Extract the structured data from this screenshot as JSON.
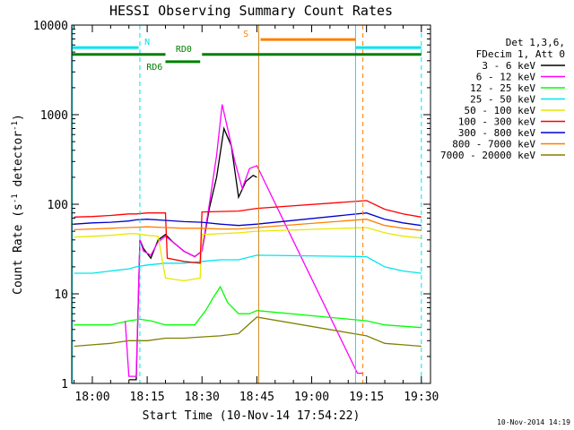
{
  "chart_data": {
    "type": "line",
    "title": "HESSI Observing Summary Count Rates",
    "xlabel": "Start Time (10-Nov-14 17:54:22)",
    "ylabel": "Count Rate (s",
    "ylabel_sup1": "-1",
    "ylabel_mid": " detector",
    "ylabel_sup2": "-1",
    "ylabel_end": ")",
    "y_scale": "log",
    "ylim": [
      1,
      10000
    ],
    "xlim": [
      "17:54:22",
      "19:32:30"
    ],
    "x_ticks": [
      "18:00",
      "18:15",
      "18:30",
      "18:45",
      "19:00",
      "19:15",
      "19:30"
    ],
    "y_ticks": [
      "1",
      "10",
      "100",
      "1000",
      "10000"
    ],
    "legend_header": [
      "Det 1,3,6,",
      "FDecim 1, Att 0"
    ],
    "legend_position": "right-top",
    "timestamp": "10-Nov-2014 14:19",
    "state_bars": [
      {
        "label": "N",
        "start": "17:54:30",
        "end": "18:12:40",
        "label_at": "18:15",
        "level": 5600,
        "color": "#00e5ee"
      },
      {
        "label": "N",
        "start": "19:12:00",
        "end": "19:30:00",
        "label_at": null,
        "level": 5600,
        "color": "#00e5ee"
      },
      {
        "label": "S",
        "start": "18:46:00",
        "end": "19:12:00",
        "label_at": "18:42",
        "level": 6900,
        "color": "#ff7f00"
      },
      {
        "label": "RD0",
        "start": "17:54:30",
        "end": "18:20:00",
        "label_at": "18:25",
        "level": 4700,
        "color": "#008000"
      },
      {
        "label": "RD6",
        "start": "18:20:00",
        "end": "18:29:30",
        "label_at": "18:17",
        "level": 3900,
        "color": "#008000"
      },
      {
        "label": "",
        "start": "18:30:00",
        "end": "19:30:00",
        "label_at": null,
        "level": 4700,
        "color": "#008000"
      }
    ],
    "vertical_markers": [
      {
        "time": "17:54:30",
        "color": "#00e5ee",
        "style": "solid"
      },
      {
        "time": "18:13:00",
        "color": "#00e5ee",
        "style": "dashed"
      },
      {
        "time": "18:45:30",
        "color": "#d08a1a",
        "style": "solid"
      },
      {
        "time": "19:12:00",
        "color": "#00e5ee",
        "style": "solid"
      },
      {
        "time": "19:14:00",
        "color": "#ff7f00",
        "style": "dashed"
      },
      {
        "time": "19:30:00",
        "color": "#00e5ee",
        "style": "dashed"
      }
    ],
    "series": [
      {
        "name": "3 - 6 keV",
        "color": "#000000",
        "points": [
          [
            "18:10:00",
            1.1
          ],
          [
            "18:12:00",
            1.1
          ],
          [
            "18:13:00",
            40
          ],
          [
            "18:14:00",
            32
          ],
          [
            "18:16:00",
            25
          ],
          [
            "18:18:00",
            40
          ],
          [
            "18:20:00",
            46
          ],
          [
            "18:22:00",
            38
          ],
          [
            "18:25:00",
            30
          ],
          [
            "18:28:00",
            26
          ],
          [
            "18:30:00",
            30
          ],
          [
            "18:32:00",
            90
          ],
          [
            "18:34:00",
            200
          ],
          [
            "18:36:00",
            700
          ],
          [
            "18:38:00",
            450
          ],
          [
            "18:40:00",
            120
          ],
          [
            "18:42:00",
            180
          ],
          [
            "18:44:00",
            210
          ],
          [
            "18:45:00",
            200
          ]
        ]
      },
      {
        "name": "6 - 12 keV",
        "color": "#ff00ff",
        "points": [
          [
            "18:09:00",
            5
          ],
          [
            "18:10:00",
            1.2
          ],
          [
            "18:12:00",
            1.2
          ],
          [
            "18:13:00",
            40
          ],
          [
            "18:14:00",
            30
          ],
          [
            "18:16:00",
            27
          ],
          [
            "18:18:00",
            38
          ],
          [
            "18:20:00",
            44
          ],
          [
            "18:22:00",
            38
          ],
          [
            "18:25:00",
            30
          ],
          [
            "18:28:00",
            26
          ],
          [
            "18:30:00",
            30
          ],
          [
            "18:32:00",
            100
          ],
          [
            "18:34:00",
            350
          ],
          [
            "18:35:30",
            1300
          ],
          [
            "18:37:00",
            700
          ],
          [
            "18:39:00",
            300
          ],
          [
            "18:41:00",
            150
          ],
          [
            "18:43:00",
            250
          ],
          [
            "18:45:00",
            270
          ],
          [
            "19:12:30",
            1.3
          ],
          [
            "19:14:00",
            1.3
          ]
        ]
      },
      {
        "name": "12 - 25 keV",
        "color": "#00ff00",
        "points": [
          [
            "17:55:00",
            4.5
          ],
          [
            "18:05:00",
            4.5
          ],
          [
            "18:10:00",
            5
          ],
          [
            "18:13:00",
            5.2
          ],
          [
            "18:16:00",
            5
          ],
          [
            "18:20:00",
            4.5
          ],
          [
            "18:25:00",
            4.5
          ],
          [
            "18:28:00",
            4.5
          ],
          [
            "18:31:00",
            6.5
          ],
          [
            "18:33:00",
            9
          ],
          [
            "18:35:00",
            12
          ],
          [
            "18:37:00",
            8
          ],
          [
            "18:40:00",
            6
          ],
          [
            "18:43:00",
            6
          ],
          [
            "18:45:00",
            6.5
          ],
          [
            "19:15:00",
            5
          ],
          [
            "19:20:00",
            4.5
          ],
          [
            "19:30:00",
            4.2
          ]
        ]
      },
      {
        "name": "25 - 50 keV",
        "color": "#00e5ee",
        "points": [
          [
            "17:55:00",
            17
          ],
          [
            "18:00:00",
            17
          ],
          [
            "18:05:00",
            18
          ],
          [
            "18:10:00",
            19
          ],
          [
            "18:12:00",
            20
          ],
          [
            "18:15:00",
            21
          ],
          [
            "18:20:00",
            22
          ],
          [
            "18:25:00",
            22
          ],
          [
            "18:30:00",
            23
          ],
          [
            "18:35:00",
            24
          ],
          [
            "18:40:00",
            24
          ],
          [
            "18:45:00",
            27
          ],
          [
            "19:15:00",
            26
          ],
          [
            "19:20:00",
            20
          ],
          [
            "19:25:00",
            18
          ],
          [
            "19:30:00",
            17
          ]
        ]
      },
      {
        "name": "50 - 100 keV",
        "color": "#e8e800",
        "points": [
          [
            "17:55:00",
            43
          ],
          [
            "18:00:00",
            44
          ],
          [
            "18:05:00",
            45
          ],
          [
            "18:10:00",
            47
          ],
          [
            "18:12:00",
            47
          ],
          [
            "18:15:00",
            45
          ],
          [
            "18:18:00",
            44
          ],
          [
            "18:20:00",
            15
          ],
          [
            "18:25:00",
            14
          ],
          [
            "18:29:30",
            15
          ],
          [
            "18:30:00",
            46
          ],
          [
            "18:35:00",
            47
          ],
          [
            "18:40:00",
            48
          ],
          [
            "18:45:00",
            50
          ],
          [
            "19:15:00",
            55
          ],
          [
            "19:20:00",
            48
          ],
          [
            "19:25:00",
            44
          ],
          [
            "19:30:00",
            42
          ]
        ]
      },
      {
        "name": "100 - 300 keV",
        "color": "#ff0000",
        "points": [
          [
            "17:55:00",
            72
          ],
          [
            "18:00:00",
            73
          ],
          [
            "18:05:00",
            75
          ],
          [
            "18:10:00",
            78
          ],
          [
            "18:12:00",
            78
          ],
          [
            "18:15:00",
            80
          ],
          [
            "18:20:00",
            80
          ],
          [
            "18:20:30",
            25
          ],
          [
            "18:25:00",
            23
          ],
          [
            "18:29:30",
            22
          ],
          [
            "18:30:00",
            82
          ],
          [
            "18:35:00",
            83
          ],
          [
            "18:40:00",
            84
          ],
          [
            "18:45:00",
            90
          ],
          [
            "19:15:00",
            110
          ],
          [
            "19:20:00",
            88
          ],
          [
            "19:25:00",
            78
          ],
          [
            "19:30:00",
            72
          ]
        ]
      },
      {
        "name": "300 - 800 keV",
        "color": "#0000cc",
        "points": [
          [
            "17:55:00",
            60
          ],
          [
            "18:00:00",
            62
          ],
          [
            "18:05:00",
            63
          ],
          [
            "18:10:00",
            65
          ],
          [
            "18:12:00",
            67
          ],
          [
            "18:15:00",
            68
          ],
          [
            "18:20:00",
            66
          ],
          [
            "18:25:00",
            64
          ],
          [
            "18:30:00",
            63
          ],
          [
            "18:35:00",
            60
          ],
          [
            "18:40:00",
            58
          ],
          [
            "18:45:00",
            60
          ],
          [
            "19:15:00",
            80
          ],
          [
            "19:20:00",
            68
          ],
          [
            "19:25:00",
            62
          ],
          [
            "19:30:00",
            58
          ]
        ]
      },
      {
        "name": "800 - 7000 keV",
        "color": "#ff7f00",
        "points": [
          [
            "17:55:00",
            52
          ],
          [
            "18:00:00",
            53
          ],
          [
            "18:05:00",
            54
          ],
          [
            "18:10:00",
            55
          ],
          [
            "18:15:00",
            56
          ],
          [
            "18:20:00",
            55
          ],
          [
            "18:25:00",
            54
          ],
          [
            "18:30:00",
            54
          ],
          [
            "18:35:00",
            53
          ],
          [
            "18:40:00",
            53
          ],
          [
            "18:45:00",
            55
          ],
          [
            "19:15:00",
            68
          ],
          [
            "19:20:00",
            58
          ],
          [
            "19:25:00",
            54
          ],
          [
            "19:30:00",
            51
          ]
        ]
      },
      {
        "name": "7000 - 20000 keV",
        "color": "#808000",
        "points": [
          [
            "17:55:00",
            2.6
          ],
          [
            "18:00:00",
            2.7
          ],
          [
            "18:05:00",
            2.8
          ],
          [
            "18:10:00",
            3.0
          ],
          [
            "18:15:00",
            3.0
          ],
          [
            "18:20:00",
            3.2
          ],
          [
            "18:25:00",
            3.2
          ],
          [
            "18:30:00",
            3.3
          ],
          [
            "18:35:00",
            3.4
          ],
          [
            "18:40:00",
            3.6
          ],
          [
            "18:45:00",
            5.5
          ],
          [
            "19:15:00",
            3.4
          ],
          [
            "19:20:00",
            2.8
          ],
          [
            "19:25:00",
            2.7
          ],
          [
            "19:30:00",
            2.6
          ]
        ]
      }
    ]
  }
}
